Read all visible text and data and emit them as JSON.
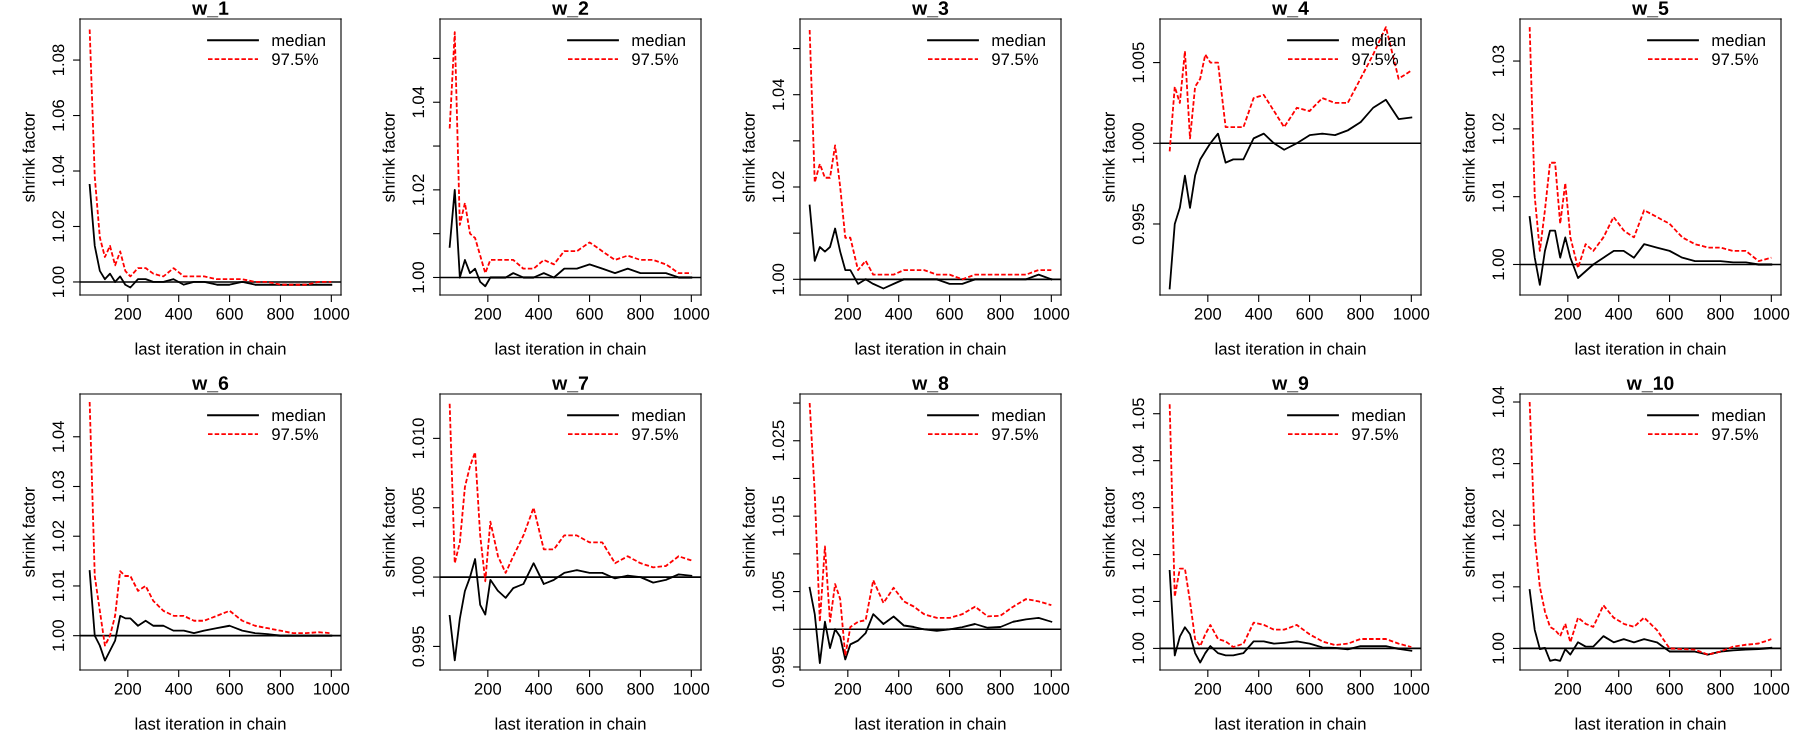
{
  "chart_data": [
    {
      "type": "line",
      "title": "w_1",
      "xlabel": "last iteration in chain",
      "ylabel": "shrink factor",
      "legend": "top right",
      "xlim": [
        12,
        1038
      ],
      "xticks": [
        200,
        400,
        600,
        800,
        1000
      ],
      "ylim": [
        0.9953,
        1.0948
      ],
      "yticks": [
        {
          "value": 1.0,
          "label": "1.00"
        },
        1.02,
        1.04,
        1.06,
        1.08
      ],
      "ref_lines": [
        {
          "axis": "y",
          "value": 1,
          "label": null,
          "color": "#000000"
        }
      ],
      "x": [
        50,
        70,
        90,
        110,
        130,
        150,
        170,
        190,
        210,
        240,
        270,
        300,
        340,
        380,
        420,
        460,
        500,
        550,
        600,
        650,
        700,
        750,
        800,
        850,
        900,
        950,
        1000
      ],
      "series": [
        {
          "name": "median",
          "color": "#000000",
          "line_style": "solid",
          "values": [
            1.035,
            1.013,
            1.004,
            1.001,
            1.003,
            1.0,
            1.002,
            0.999,
            0.998,
            1.001,
            1.001,
            1.0,
            1.0,
            1.001,
            0.999,
            1.0,
            1.0,
            0.999,
            0.999,
            1.0,
            0.999,
            0.999,
            0.999,
            0.999,
            0.999,
            0.999,
            0.999
          ]
        },
        {
          "name": "97.5%",
          "color": "#ff0000",
          "line_style": "dashed",
          "values": [
            1.091,
            1.038,
            1.016,
            1.009,
            1.013,
            1.006,
            1.011,
            1.004,
            1.002,
            1.005,
            1.005,
            1.003,
            1.002,
            1.005,
            1.002,
            1.002,
            1.002,
            1.001,
            1.001,
            1.001,
            1.0,
            1.0,
            0.999,
            0.999,
            0.999,
            1.0,
            1.0
          ]
        }
      ]
    },
    {
      "type": "line",
      "title": "w_2",
      "xlabel": "last iteration in chain",
      "ylabel": "shrink factor",
      "legend": "top right",
      "xlim": [
        12,
        1038
      ],
      "xticks": [
        200,
        400,
        600,
        800,
        1000
      ],
      "ylim": [
        0.996,
        1.059
      ],
      "yticks": [
        {
          "value": 1.0,
          "label": "1.00"
        },
        {
          "value": 1.01,
          "label": null
        },
        1.02,
        {
          "value": 1.03,
          "label": null
        },
        1.04,
        {
          "value": 1.05,
          "label": null
        }
      ],
      "ref_lines": [
        {
          "axis": "y",
          "value": 1,
          "label": null,
          "color": "#000000"
        }
      ],
      "x": [
        50,
        70,
        90,
        110,
        130,
        150,
        170,
        190,
        210,
        240,
        270,
        300,
        340,
        380,
        420,
        460,
        500,
        550,
        600,
        650,
        700,
        750,
        800,
        850,
        900,
        950,
        1000
      ],
      "series": [
        {
          "name": "median",
          "color": "#000000",
          "line_style": "solid",
          "values": [
            1.007,
            1.02,
            1.0,
            1.004,
            1.001,
            1.002,
            0.999,
            0.998,
            1.0,
            1.0,
            1.0,
            1.001,
            1.0,
            1.0,
            1.001,
            1.0,
            1.002,
            1.002,
            1.003,
            1.002,
            1.001,
            1.002,
            1.001,
            1.001,
            1.001,
            1.0,
            1.0
          ]
        },
        {
          "name": "97.5%",
          "color": "#ff0000",
          "line_style": "dashed",
          "values": [
            1.034,
            1.056,
            1.012,
            1.017,
            1.01,
            1.009,
            1.005,
            1.001,
            1.004,
            1.004,
            1.004,
            1.004,
            1.002,
            1.002,
            1.004,
            1.003,
            1.006,
            1.006,
            1.008,
            1.006,
            1.004,
            1.005,
            1.004,
            1.004,
            1.003,
            1.001,
            1.001
          ]
        }
      ]
    },
    {
      "type": "line",
      "title": "w_3",
      "xlabel": "last iteration in chain",
      "ylabel": "shrink factor",
      "legend": "top right",
      "xlim": [
        12,
        1038
      ],
      "xticks": [
        200,
        400,
        600,
        800,
        1000
      ],
      "ylim": [
        0.9966,
        1.0564
      ],
      "yticks": [
        {
          "value": 1.0,
          "label": "1.00"
        },
        {
          "value": 1.01,
          "label": null
        },
        1.02,
        {
          "value": 1.03,
          "label": null
        },
        1.04,
        {
          "value": 1.05,
          "label": null
        }
      ],
      "ref_lines": [
        {
          "axis": "y",
          "value": 1,
          "label": null,
          "color": "#000000"
        }
      ],
      "x": [
        50,
        70,
        90,
        110,
        130,
        150,
        170,
        190,
        210,
        240,
        270,
        300,
        340,
        380,
        420,
        460,
        500,
        550,
        600,
        650,
        700,
        750,
        800,
        850,
        900,
        950,
        1000
      ],
      "series": [
        {
          "name": "median",
          "color": "#000000",
          "line_style": "solid",
          "values": [
            1.016,
            1.004,
            1.007,
            1.006,
            1.007,
            1.011,
            1.006,
            1.002,
            1.002,
            0.999,
            1.0,
            0.999,
            0.998,
            0.999,
            1.0,
            1.0,
            1.0,
            1.0,
            0.999,
            0.999,
            1.0,
            1.0,
            1.0,
            1.0,
            1.0,
            1.001,
            1.0
          ]
        },
        {
          "name": "97.5%",
          "color": "#ff0000",
          "line_style": "dashed",
          "values": [
            1.054,
            1.021,
            1.025,
            1.022,
            1.022,
            1.029,
            1.02,
            1.009,
            1.009,
            1.002,
            1.004,
            1.001,
            1.001,
            1.001,
            1.002,
            1.002,
            1.002,
            1.001,
            1.001,
            1.0,
            1.001,
            1.001,
            1.001,
            1.001,
            1.001,
            1.002,
            1.002
          ]
        }
      ]
    },
    {
      "type": "line",
      "title": "w_4",
      "xlabel": "last iteration in chain",
      "ylabel": "shrink factor",
      "legend": "top right",
      "xlim": [
        12,
        1038
      ],
      "xticks": [
        200,
        400,
        600,
        800,
        1000
      ],
      "ylim": [
        0.9906,
        1.0077
      ],
      "yticks": [
        0.995,
        {
          "value": 1.0,
          "label": "1.000"
        },
        1.005
      ],
      "ref_lines": [
        {
          "axis": "y",
          "value": 1,
          "label": null,
          "color": "#000000"
        }
      ],
      "x": [
        50,
        70,
        90,
        110,
        130,
        150,
        170,
        190,
        210,
        240,
        270,
        300,
        340,
        380,
        420,
        460,
        500,
        550,
        600,
        650,
        700,
        750,
        800,
        850,
        900,
        950,
        1000
      ],
      "series": [
        {
          "name": "median",
          "color": "#000000",
          "line_style": "solid",
          "values": [
            0.991,
            0.995,
            0.996,
            0.998,
            0.996,
            0.998,
            0.999,
            0.9995,
            1.0,
            1.0006,
            0.9988,
            0.999,
            0.999,
            1.0003,
            1.0006,
            1.0,
            0.9996,
            1.0,
            1.0005,
            1.0006,
            1.0005,
            1.0008,
            1.0013,
            1.0022,
            1.0027,
            1.0015,
            1.0016
          ]
        },
        {
          "name": "97.5%",
          "color": "#ff0000",
          "line_style": "dashed",
          "values": [
            0.9995,
            1.0035,
            1.0025,
            1.0057,
            1.0003,
            1.0035,
            1.004,
            1.0055,
            1.005,
            1.005,
            1.001,
            1.001,
            1.001,
            1.0028,
            1.003,
            1.002,
            1.001,
            1.0022,
            1.002,
            1.0028,
            1.0025,
            1.0025,
            1.004,
            1.0055,
            1.0072,
            1.004,
            1.0045
          ]
        }
      ]
    },
    {
      "type": "line",
      "title": "w_5",
      "xlabel": "last iteration in chain",
      "ylabel": "shrink factor",
      "legend": "top right",
      "xlim": [
        12,
        1038
      ],
      "xticks": [
        200,
        400,
        600,
        800,
        1000
      ],
      "ylim": [
        0.9955,
        1.0362
      ],
      "yticks": [
        {
          "value": 1.0,
          "label": "1.00"
        },
        1.01,
        1.02,
        1.03
      ],
      "ref_lines": [
        {
          "axis": "y",
          "value": 1,
          "label": null,
          "color": "#000000"
        }
      ],
      "x": [
        50,
        70,
        90,
        110,
        130,
        150,
        170,
        190,
        210,
        240,
        270,
        300,
        340,
        380,
        420,
        460,
        500,
        550,
        600,
        650,
        700,
        750,
        800,
        850,
        900,
        950,
        1000
      ],
      "series": [
        {
          "name": "median",
          "color": "#000000",
          "line_style": "solid",
          "values": [
            1.007,
            1.001,
            0.997,
            1.002,
            1.005,
            1.005,
            1.001,
            1.004,
            1.001,
            0.998,
            0.999,
            1.0,
            1.001,
            1.002,
            1.002,
            1.001,
            1.003,
            1.0025,
            1.002,
            1.001,
            1.0005,
            1.0005,
            1.0005,
            1.0003,
            1.0003,
            1.0,
            1.0
          ]
        },
        {
          "name": "97.5%",
          "color": "#ff0000",
          "line_style": "dashed",
          "values": [
            1.035,
            1.01,
            1.002,
            1.008,
            1.015,
            1.015,
            1.006,
            1.012,
            1.004,
            0.9995,
            1.003,
            1.002,
            1.004,
            1.007,
            1.005,
            1.004,
            1.008,
            1.007,
            1.006,
            1.004,
            1.003,
            1.0025,
            1.0025,
            1.002,
            1.002,
            1.0005,
            1.001
          ]
        }
      ]
    },
    {
      "type": "line",
      "title": "w_6",
      "xlabel": "last iteration in chain",
      "ylabel": "shrink factor",
      "legend": "top right",
      "xlim": [
        12,
        1038
      ],
      "xticks": [
        200,
        400,
        600,
        800,
        1000
      ],
      "ylim": [
        0.9931,
        1.0486
      ],
      "yticks": [
        {
          "value": 1.0,
          "label": "1.00"
        },
        1.01,
        1.02,
        1.03,
        1.04
      ],
      "ref_lines": [
        {
          "axis": "y",
          "value": 1,
          "label": null,
          "color": "#000000"
        }
      ],
      "x": [
        50,
        70,
        90,
        110,
        130,
        150,
        170,
        190,
        210,
        240,
        270,
        300,
        340,
        380,
        420,
        460,
        500,
        550,
        600,
        650,
        700,
        750,
        800,
        850,
        900,
        950,
        1000
      ],
      "series": [
        {
          "name": "median",
          "color": "#000000",
          "line_style": "solid",
          "values": [
            1.013,
            1.0,
            0.998,
            0.995,
            0.997,
            0.999,
            1.004,
            1.0035,
            1.0035,
            1.002,
            1.003,
            1.002,
            1.002,
            1.001,
            1.001,
            1.0005,
            1.001,
            1.0015,
            1.002,
            1.001,
            1.0005,
            1.0003,
            1.0,
            1.0,
            1.0,
            1.0,
            1.0
          ]
        },
        {
          "name": "97.5%",
          "color": "#ff0000",
          "line_style": "dashed",
          "values": [
            1.047,
            1.012,
            1.005,
            0.998,
            1.0,
            1.004,
            1.013,
            1.012,
            1.012,
            1.009,
            1.01,
            1.007,
            1.005,
            1.004,
            1.004,
            1.003,
            1.003,
            1.004,
            1.005,
            1.003,
            1.002,
            1.0015,
            1.001,
            1.0005,
            1.0005,
            1.0007,
            1.0005
          ]
        }
      ]
    },
    {
      "type": "line",
      "title": "w_7",
      "xlabel": "last iteration in chain",
      "ylabel": "shrink factor",
      "legend": "top right",
      "xlim": [
        12,
        1038
      ],
      "xticks": [
        200,
        400,
        600,
        800,
        1000
      ],
      "ylim": [
        0.9933,
        1.0132
      ],
      "yticks": [
        0.995,
        {
          "value": 1.0,
          "label": "1.000"
        },
        1.005,
        {
          "value": 1.01,
          "label": "1.010"
        }
      ],
      "ref_lines": [
        {
          "axis": "y",
          "value": 1,
          "label": null,
          "color": "#000000"
        }
      ],
      "x": [
        50,
        70,
        90,
        110,
        130,
        150,
        170,
        190,
        210,
        240,
        270,
        300,
        340,
        380,
        420,
        460,
        500,
        550,
        600,
        650,
        700,
        750,
        800,
        850,
        900,
        950,
        1000
      ],
      "series": [
        {
          "name": "median",
          "color": "#000000",
          "line_style": "solid",
          "values": [
            0.9972,
            0.994,
            0.997,
            0.999,
            1.0,
            1.0013,
            0.998,
            0.9973,
            0.9998,
            0.999,
            0.9985,
            0.9992,
            0.9995,
            1.001,
            0.9995,
            0.9998,
            1.0003,
            1.0005,
            1.0003,
            1.0003,
            0.9999,
            1.0001,
            1.0,
            0.9996,
            0.9998,
            1.0002,
            1.0001
          ]
        },
        {
          "name": "97.5%",
          "color": "#ff0000",
          "line_style": "dashed",
          "values": [
            1.0125,
            1.001,
            1.0025,
            1.0065,
            1.008,
            1.009,
            1.003,
            0.9997,
            1.004,
            1.0015,
            1.0003,
            1.0015,
            1.003,
            1.005,
            1.002,
            1.002,
            1.003,
            1.003,
            1.0025,
            1.0025,
            1.001,
            1.0015,
            1.001,
            1.0007,
            1.0008,
            1.0015,
            1.0012
          ]
        }
      ]
    },
    {
      "type": "line",
      "title": "w_8",
      "xlabel": "last iteration in chain",
      "ylabel": "shrink factor",
      "legend": "top right",
      "xlim": [
        12,
        1038
      ],
      "xticks": [
        200,
        400,
        600,
        800,
        1000
      ],
      "ylim": [
        0.9946,
        1.0312
      ],
      "yticks": [
        0.995,
        {
          "value": 1.0,
          "label": null
        },
        1.005,
        {
          "value": 1.01,
          "label": null
        },
        1.015,
        {
          "value": 1.02,
          "label": null
        },
        1.025,
        {
          "value": 1.03,
          "label": null
        }
      ],
      "ref_lines": [
        {
          "axis": "y",
          "value": 1,
          "label": null,
          "color": "#000000"
        }
      ],
      "x": [
        50,
        70,
        90,
        110,
        130,
        150,
        170,
        190,
        210,
        240,
        270,
        300,
        340,
        380,
        420,
        460,
        500,
        550,
        600,
        650,
        700,
        750,
        800,
        850,
        900,
        950,
        1000
      ],
      "series": [
        {
          "name": "median",
          "color": "#000000",
          "line_style": "solid",
          "values": [
            1.0055,
            1.002,
            0.9955,
            1.001,
            0.9975,
            1.0,
            0.999,
            0.996,
            0.998,
            0.9985,
            0.9995,
            1.002,
            1.0007,
            1.0017,
            1.0005,
            1.0003,
            1.0,
            0.9998,
            1.0,
            1.0003,
            1.0007,
            1.0002,
            1.0003,
            1.001,
            1.0013,
            1.0015,
            1.001
          ]
        },
        {
          "name": "97.5%",
          "color": "#ff0000",
          "line_style": "dashed",
          "values": [
            1.03,
            1.018,
            1.001,
            1.011,
            1.001,
            1.006,
            1.004,
            0.9965,
            1.0003,
            1.001,
            1.0012,
            1.0065,
            1.0035,
            1.0055,
            1.0037,
            1.003,
            1.002,
            1.0015,
            1.0015,
            1.002,
            1.003,
            1.0017,
            1.0018,
            1.003,
            1.004,
            1.0037,
            1.0032
          ]
        }
      ]
    },
    {
      "type": "line",
      "title": "w_9",
      "xlabel": "last iteration in chain",
      "ylabel": "shrink factor",
      "legend": "top right",
      "xlim": [
        12,
        1038
      ],
      "xticks": [
        200,
        400,
        600,
        800,
        1000
      ],
      "ylim": [
        0.9954,
        1.0542
      ],
      "yticks": [
        {
          "value": 1.0,
          "label": "1.00"
        },
        1.01,
        1.02,
        1.03,
        1.04,
        1.05
      ],
      "ref_lines": [
        {
          "axis": "y",
          "value": 1,
          "label": null,
          "color": "#000000"
        }
      ],
      "x": [
        50,
        70,
        90,
        110,
        130,
        150,
        170,
        190,
        210,
        240,
        270,
        300,
        340,
        380,
        420,
        460,
        500,
        550,
        600,
        650,
        700,
        750,
        800,
        850,
        900,
        950,
        1000
      ],
      "series": [
        {
          "name": "median",
          "color": "#000000",
          "line_style": "solid",
          "values": [
            1.0165,
            0.9985,
            1.0025,
            1.0045,
            1.003,
            0.999,
            0.997,
            0.999,
            1.0005,
            0.999,
            0.9985,
            0.9985,
            0.999,
            1.0015,
            1.0015,
            1.001,
            1.0012,
            1.0015,
            1.001,
            1.0002,
            1.0001,
            0.9998,
            1.0005,
            1.0005,
            1.0005,
            0.9999,
            0.9995
          ]
        },
        {
          "name": "97.5%",
          "color": "#ff0000",
          "line_style": "dashed",
          "values": [
            1.052,
            1.011,
            1.017,
            1.017,
            1.01,
            1.002,
            1.0005,
            1.003,
            1.005,
            1.002,
            1.0015,
            1.0003,
            1.001,
            1.0055,
            1.005,
            1.004,
            1.004,
            1.005,
            1.003,
            1.0015,
            1.0007,
            1.001,
            1.002,
            1.002,
            1.002,
            1.001,
            1.0003
          ]
        }
      ]
    },
    {
      "type": "line",
      "title": "w_10",
      "xlabel": "last iteration in chain",
      "ylabel": "shrink factor",
      "legend": "top right",
      "xlim": [
        12,
        1038
      ],
      "xticks": [
        200,
        400,
        600,
        800,
        1000
      ],
      "ylim": [
        0.9965,
        1.0413
      ],
      "yticks": [
        {
          "value": 1.0,
          "label": "1.00"
        },
        1.01,
        1.02,
        1.03,
        1.04
      ],
      "ref_lines": [
        {
          "axis": "y",
          "value": 1,
          "label": null,
          "color": "#000000"
        }
      ],
      "x": [
        50,
        70,
        90,
        110,
        130,
        150,
        170,
        190,
        210,
        240,
        270,
        300,
        340,
        380,
        420,
        460,
        500,
        550,
        600,
        650,
        700,
        750,
        800,
        850,
        900,
        950,
        1000
      ],
      "series": [
        {
          "name": "median",
          "color": "#000000",
          "line_style": "solid",
          "values": [
            1.0095,
            1.003,
            0.9999,
            1.0001,
            0.998,
            0.9982,
            0.998,
            0.9999,
            0.999,
            1.001,
            1.0003,
            1.0003,
            1.002,
            1.001,
            1.0015,
            1.001,
            1.0015,
            1.001,
            0.9995,
            0.9995,
            0.9995,
            0.999,
            0.9995,
            0.9997,
            0.9998,
            0.9999,
            1.0001
          ]
        },
        {
          "name": "97.5%",
          "color": "#ff0000",
          "line_style": "dashed",
          "values": [
            1.04,
            1.018,
            1.01,
            1.006,
            1.0035,
            1.003,
            1.002,
            1.004,
            1.001,
            1.005,
            1.004,
            1.0035,
            1.007,
            1.005,
            1.004,
            1.0035,
            1.005,
            1.003,
            1.0,
            0.9999,
            0.9998,
            0.999,
            0.9995,
            1.0003,
            1.0006,
            1.0008,
            1.0015
          ]
        }
      ]
    }
  ]
}
